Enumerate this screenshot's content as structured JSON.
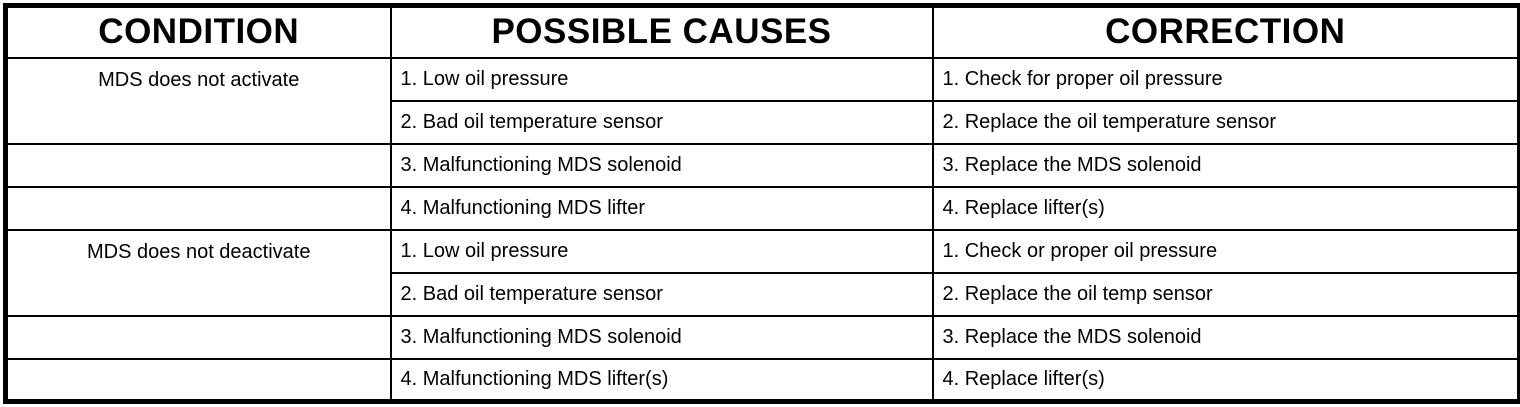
{
  "table": {
    "headers": [
      "CONDITION",
      "POSSIBLE CAUSES",
      "CORRECTION"
    ],
    "sections": [
      {
        "condition": "MDS does not activate",
        "rows": [
          {
            "cause": "1. Low oil pressure",
            "correction": "1. Check for proper oil pressure"
          },
          {
            "cause": "2. Bad oil temperature sensor",
            "correction": "2. Replace the oil temperature sensor"
          },
          {
            "cause": "3. Malfunctioning MDS solenoid",
            "correction": "3. Replace the MDS solenoid"
          },
          {
            "cause": "4. Malfunctioning MDS lifter",
            "correction": "4. Replace lifter(s)"
          }
        ]
      },
      {
        "condition": "MDS does not deactivate",
        "rows": [
          {
            "cause": "1. Low oil pressure",
            "correction": "1. Check or proper oil pressure"
          },
          {
            "cause": "2. Bad oil temperature sensor",
            "correction": "2. Replace the oil temp sensor"
          },
          {
            "cause": "3. Malfunctioning MDS solenoid",
            "correction": "3. Replace the MDS solenoid"
          },
          {
            "cause": "4. Malfunctioning MDS lifter(s)",
            "correction": "4. Replace lifter(s)"
          }
        ]
      }
    ]
  }
}
